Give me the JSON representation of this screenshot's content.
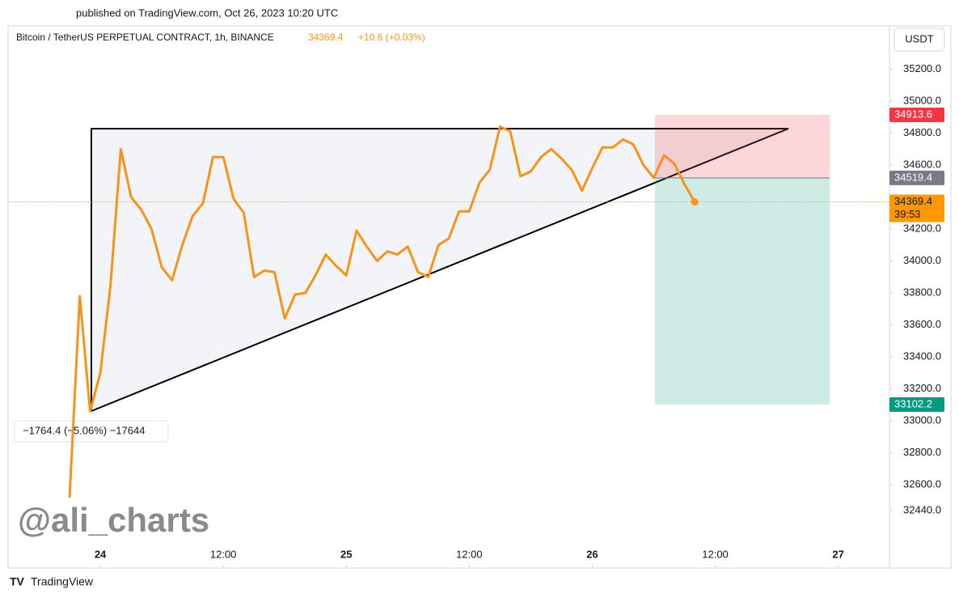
{
  "header": {
    "published": "published on TradingView.com, Oct 26, 2023 10:20 UTC",
    "symbol": "Bitcoin / TetherUS PERPETUAL CONTRACT, 1h, BINANCE",
    "last": "34369.4",
    "change": "+10.6 (+0.03%)",
    "currency": "USDT"
  },
  "measure": "−1764.4 (−5.06%) −17644",
  "watermark": "@ali_charts",
  "footer": "TradingView",
  "chart_data": {
    "type": "line",
    "series": [
      {
        "name": "BTCUSDT",
        "color": "#f7931a",
        "x": [
          -3,
          -2,
          -1,
          0,
          1,
          2,
          3,
          4,
          5,
          6,
          7,
          8,
          9,
          10,
          11,
          12,
          13,
          14,
          15,
          16,
          17,
          18,
          19,
          20,
          21,
          22,
          23,
          24,
          25,
          26,
          27,
          28,
          29,
          30,
          31,
          32,
          33,
          34,
          35,
          36,
          37,
          38,
          39,
          40,
          41,
          42,
          43,
          44,
          45,
          46,
          47,
          48,
          49,
          50,
          51,
          52,
          53,
          54,
          55,
          56,
          57,
          58
        ],
        "values": [
          32520,
          33780,
          33060,
          33300,
          33850,
          34700,
          34400,
          34320,
          34200,
          33960,
          33880,
          34100,
          34280,
          34360,
          34650,
          34650,
          34390,
          34300,
          33900,
          33940,
          33930,
          33640,
          33790,
          33800,
          33910,
          34040,
          33970,
          33910,
          34190,
          34090,
          34000,
          34060,
          34040,
          34090,
          33930,
          33900,
          34100,
          34140,
          34310,
          34310,
          34490,
          34570,
          34840,
          34810,
          34530,
          34560,
          34650,
          34700,
          34640,
          34570,
          34440,
          34580,
          34710,
          34710,
          34760,
          34730,
          34600,
          34520,
          34660,
          34610,
          34480,
          34369.4
        ]
      }
    ],
    "xlim": [
      -9,
      77
    ],
    "ylim": [
      32080,
      35470
    ],
    "xticks": [
      {
        "value": 0,
        "label": "24"
      },
      {
        "value": 12,
        "label": "12:00"
      },
      {
        "value": 24,
        "label": "25"
      },
      {
        "value": 36,
        "label": "12:00"
      },
      {
        "value": 48,
        "label": "26"
      },
      {
        "value": 60,
        "label": "12:00"
      },
      {
        "value": 72,
        "label": "27"
      }
    ],
    "yticks": [
      {
        "value": 35200,
        "label": "35200.0"
      },
      {
        "value": 35000,
        "label": "35000.0"
      },
      {
        "value": 34800,
        "label": "34800.0"
      },
      {
        "value": 34600,
        "label": "34600.0"
      },
      {
        "value": 34200,
        "label": "34200.0"
      },
      {
        "value": 34000,
        "label": "34000.0"
      },
      {
        "value": 33800,
        "label": "33800.0"
      },
      {
        "value": 33600,
        "label": "33600.0"
      },
      {
        "value": 33400,
        "label": "33400.0"
      },
      {
        "value": 33200,
        "label": "33200.0"
      },
      {
        "value": 33000,
        "label": "33000.0"
      },
      {
        "value": 32800,
        "label": "32800.0"
      },
      {
        "value": 32600,
        "label": "32600.0"
      },
      {
        "value": 32440,
        "label": "32440.0"
      }
    ],
    "price_labels": [
      {
        "value": 34913.6,
        "color": "#f23645"
      },
      {
        "value": 34519.4,
        "color": "#787b86"
      },
      {
        "value": 34369.4,
        "color": "#ff9800"
      },
      {
        "value": 33102.2,
        "color": "#089981"
      }
    ],
    "countdown": "39:53"
  }
}
